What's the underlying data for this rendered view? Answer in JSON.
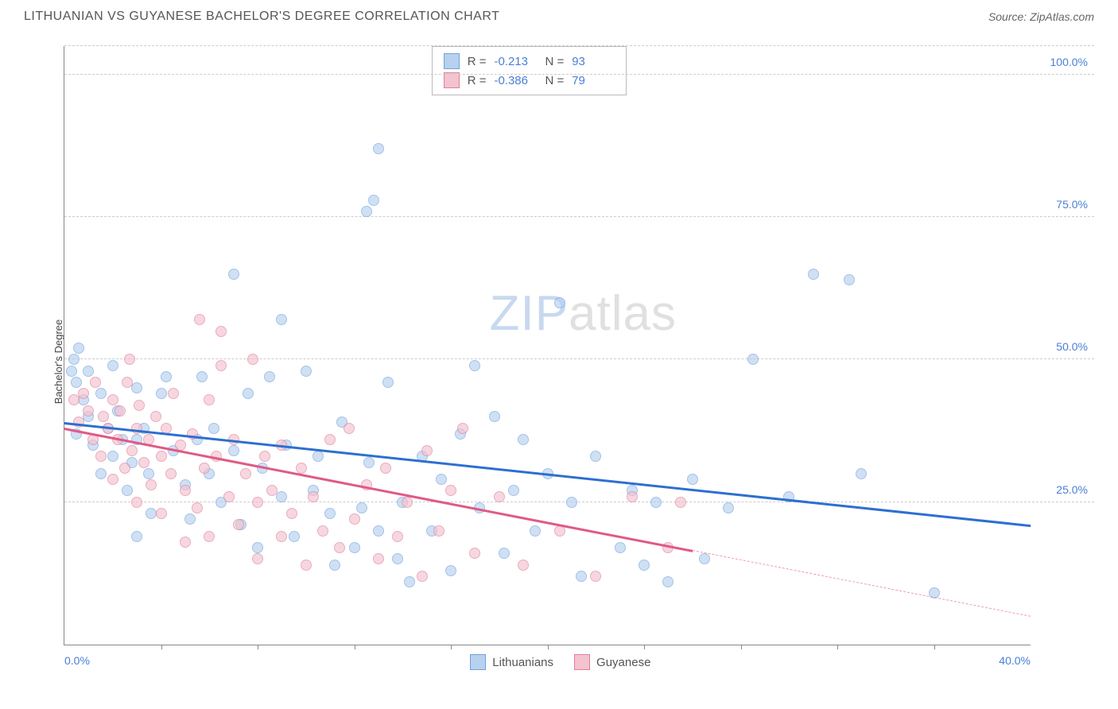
{
  "title": "LITHUANIAN VS GUYANESE BACHELOR'S DEGREE CORRELATION CHART",
  "source": "Source: ZipAtlas.com",
  "watermark": {
    "part1": "ZIP",
    "part2": "atlas"
  },
  "chart": {
    "type": "scatter",
    "ylabel": "Bachelor's Degree",
    "background_color": "#ffffff",
    "grid_color": "#cccccc",
    "axis_color": "#888888",
    "tick_label_color": "#4a7fd6",
    "xlim": [
      0,
      40
    ],
    "ylim": [
      0,
      105
    ],
    "y_ticks": [
      {
        "value": 25,
        "label": "25.0%"
      },
      {
        "value": 50,
        "label": "50.0%"
      },
      {
        "value": 75,
        "label": "75.0%"
      },
      {
        "value": 100,
        "label": "100.0%"
      }
    ],
    "x_ticks_minor": [
      4,
      8,
      12,
      16,
      20,
      24,
      28,
      32,
      36
    ],
    "x_ticks_labeled": [
      {
        "value": 0,
        "label": "0.0%",
        "align": "left"
      },
      {
        "value": 40,
        "label": "40.0%",
        "align": "right"
      }
    ],
    "series": [
      {
        "name": "Lithuanians",
        "fill": "#b7d1ef",
        "stroke": "#6fa3df",
        "fill_opacity": 0.65,
        "marker_radius": 7,
        "trend": {
          "x1": 0,
          "y1": 39,
          "x2": 40,
          "y2": 21,
          "color": "#2d6fd0",
          "dash_from_x": null
        },
        "stats": {
          "R": "-0.213",
          "N": "93"
        },
        "points": [
          [
            0.3,
            48
          ],
          [
            0.4,
            50
          ],
          [
            0.5,
            46
          ],
          [
            0.6,
            52
          ],
          [
            0.5,
            37
          ],
          [
            0.8,
            43
          ],
          [
            1.0,
            48
          ],
          [
            1.0,
            40
          ],
          [
            1.2,
            35
          ],
          [
            1.5,
            44
          ],
          [
            1.5,
            30
          ],
          [
            1.8,
            38
          ],
          [
            2.0,
            49
          ],
          [
            2.0,
            33
          ],
          [
            2.2,
            41
          ],
          [
            2.4,
            36
          ],
          [
            2.6,
            27
          ],
          [
            2.8,
            32
          ],
          [
            3.0,
            45
          ],
          [
            3.0,
            19
          ],
          [
            3.0,
            36
          ],
          [
            3.3,
            38
          ],
          [
            3.5,
            30
          ],
          [
            3.6,
            23
          ],
          [
            4.0,
            44
          ],
          [
            4.2,
            47
          ],
          [
            4.5,
            34
          ],
          [
            5.0,
            28
          ],
          [
            5.2,
            22
          ],
          [
            5.5,
            36
          ],
          [
            5.7,
            47
          ],
          [
            6.0,
            30
          ],
          [
            6.2,
            38
          ],
          [
            6.5,
            25
          ],
          [
            7.0,
            65
          ],
          [
            7.0,
            34
          ],
          [
            7.3,
            21
          ],
          [
            7.6,
            44
          ],
          [
            8.0,
            17
          ],
          [
            8.2,
            31
          ],
          [
            8.5,
            47
          ],
          [
            9.0,
            57
          ],
          [
            9.0,
            26
          ],
          [
            9.2,
            35
          ],
          [
            9.5,
            19
          ],
          [
            10.0,
            48
          ],
          [
            10.3,
            27
          ],
          [
            10.5,
            33
          ],
          [
            11.0,
            23
          ],
          [
            11.2,
            14
          ],
          [
            11.5,
            39
          ],
          [
            12.0,
            17
          ],
          [
            12.3,
            24
          ],
          [
            12.6,
            32
          ],
          [
            13.0,
            87
          ],
          [
            13.0,
            20
          ],
          [
            13.4,
            46
          ],
          [
            13.8,
            15
          ],
          [
            12.8,
            78
          ],
          [
            12.5,
            76
          ],
          [
            14.0,
            25
          ],
          [
            14.3,
            11
          ],
          [
            14.8,
            33
          ],
          [
            15.2,
            20
          ],
          [
            15.6,
            29
          ],
          [
            16.0,
            13
          ],
          [
            16.4,
            37
          ],
          [
            17.0,
            49
          ],
          [
            17.2,
            24
          ],
          [
            17.8,
            40
          ],
          [
            18.2,
            16
          ],
          [
            18.6,
            27
          ],
          [
            19.0,
            36
          ],
          [
            20.0,
            30
          ],
          [
            19.5,
            20
          ],
          [
            20.5,
            60
          ],
          [
            21.0,
            25
          ],
          [
            21.4,
            12
          ],
          [
            22.0,
            33
          ],
          [
            23.0,
            17
          ],
          [
            23.5,
            27
          ],
          [
            24.0,
            14
          ],
          [
            24.5,
            25
          ],
          [
            25.0,
            11
          ],
          [
            26.0,
            29
          ],
          [
            26.5,
            15
          ],
          [
            27.5,
            24
          ],
          [
            28.5,
            50
          ],
          [
            30.0,
            26
          ],
          [
            31.0,
            65
          ],
          [
            32.5,
            64
          ],
          [
            33.0,
            30
          ],
          [
            36.0,
            9
          ]
        ]
      },
      {
        "name": "Guyanese",
        "fill": "#f4c3cf",
        "stroke": "#e17f99",
        "fill_opacity": 0.65,
        "marker_radius": 7,
        "trend": {
          "x1": 0,
          "y1": 38,
          "x2": 40,
          "y2": 5,
          "color": "#e05a86",
          "dash_from_x": 26
        },
        "stats": {
          "R": "-0.386",
          "N": "79"
        },
        "points": [
          [
            0.4,
            43
          ],
          [
            0.6,
            39
          ],
          [
            0.8,
            44
          ],
          [
            1.0,
            41
          ],
          [
            1.2,
            36
          ],
          [
            1.3,
            46
          ],
          [
            1.5,
            33
          ],
          [
            1.6,
            40
          ],
          [
            1.8,
            38
          ],
          [
            2.0,
            43
          ],
          [
            2.0,
            29
          ],
          [
            2.2,
            36
          ],
          [
            2.3,
            41
          ],
          [
            2.5,
            31
          ],
          [
            2.6,
            46
          ],
          [
            2.8,
            34
          ],
          [
            3.0,
            38
          ],
          [
            3.0,
            25
          ],
          [
            3.1,
            42
          ],
          [
            3.3,
            32
          ],
          [
            3.5,
            36
          ],
          [
            2.7,
            50
          ],
          [
            3.6,
            28
          ],
          [
            3.8,
            40
          ],
          [
            4.0,
            33
          ],
          [
            4.0,
            23
          ],
          [
            4.2,
            38
          ],
          [
            4.4,
            30
          ],
          [
            4.5,
            44
          ],
          [
            4.8,
            35
          ],
          [
            5.0,
            27
          ],
          [
            5.0,
            18
          ],
          [
            5.3,
            37
          ],
          [
            5.5,
            24
          ],
          [
            5.6,
            57
          ],
          [
            5.8,
            31
          ],
          [
            6.0,
            43
          ],
          [
            6.0,
            19
          ],
          [
            6.3,
            33
          ],
          [
            6.5,
            49
          ],
          [
            6.5,
            55
          ],
          [
            6.8,
            26
          ],
          [
            7.0,
            36
          ],
          [
            7.2,
            21
          ],
          [
            7.5,
            30
          ],
          [
            7.8,
            50
          ],
          [
            8.0,
            25
          ],
          [
            8.0,
            15
          ],
          [
            8.3,
            33
          ],
          [
            8.6,
            27
          ],
          [
            9.0,
            35
          ],
          [
            9.0,
            19
          ],
          [
            9.4,
            23
          ],
          [
            9.8,
            31
          ],
          [
            10.0,
            14
          ],
          [
            10.3,
            26
          ],
          [
            10.7,
            20
          ],
          [
            11.0,
            36
          ],
          [
            11.4,
            17
          ],
          [
            11.8,
            38
          ],
          [
            12.0,
            22
          ],
          [
            12.5,
            28
          ],
          [
            13.0,
            15
          ],
          [
            13.3,
            31
          ],
          [
            13.8,
            19
          ],
          [
            14.2,
            25
          ],
          [
            14.8,
            12
          ],
          [
            15.0,
            34
          ],
          [
            15.5,
            20
          ],
          [
            16.0,
            27
          ],
          [
            16.5,
            38
          ],
          [
            17.0,
            16
          ],
          [
            18.0,
            26
          ],
          [
            19.0,
            14
          ],
          [
            20.5,
            20
          ],
          [
            22.0,
            12
          ],
          [
            23.5,
            26
          ],
          [
            25.0,
            17
          ],
          [
            25.5,
            25
          ]
        ]
      }
    ],
    "stats_box": {
      "r_label": "R =",
      "n_label": "N ="
    },
    "legend_labels": [
      "Lithuanians",
      "Guyanese"
    ]
  }
}
